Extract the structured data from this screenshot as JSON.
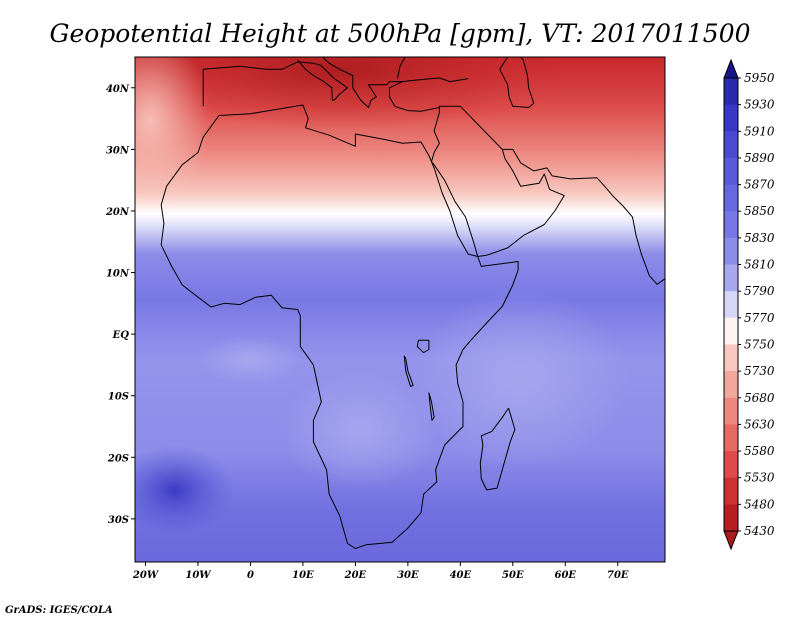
{
  "title": "Geopotential Height at 500hPa [gpm], VT: 2017011500",
  "credit": "GrADS: IGES/COLA",
  "map": {
    "lon_range": [
      -22,
      79
    ],
    "lat_range": [
      -37,
      45
    ],
    "lon_ticks": [
      {
        "value": -20,
        "label": "20W"
      },
      {
        "value": -10,
        "label": "10W"
      },
      {
        "value": 0,
        "label": "0"
      },
      {
        "value": 10,
        "label": "10E"
      },
      {
        "value": 20,
        "label": "20E"
      },
      {
        "value": 30,
        "label": "30E"
      },
      {
        "value": 40,
        "label": "40E"
      },
      {
        "value": 50,
        "label": "50E"
      },
      {
        "value": 60,
        "label": "60E"
      },
      {
        "value": 70,
        "label": "70E"
      }
    ],
    "lat_ticks": [
      {
        "value": 40,
        "label": "40N"
      },
      {
        "value": 30,
        "label": "30N"
      },
      {
        "value": 20,
        "label": "20N"
      },
      {
        "value": 10,
        "label": "10N"
      },
      {
        "value": 0,
        "label": "EQ"
      },
      {
        "value": -10,
        "label": "10S"
      },
      {
        "value": -20,
        "label": "20S"
      },
      {
        "value": -30,
        "label": "30S"
      }
    ]
  },
  "colorbar": {
    "levels_top_to_bottom": [
      "5950",
      "5930",
      "5910",
      "5890",
      "5870",
      "5850",
      "5830",
      "5810",
      "5790",
      "5770",
      "5750",
      "5730",
      "5680",
      "5630",
      "5580",
      "5530",
      "5480",
      "5430"
    ],
    "colors_top_to_bottom": [
      "#1a1a8f",
      "#2a2aae",
      "#3838c4",
      "#4a4ad0",
      "#5a5ad8",
      "#6868de",
      "#7878e4",
      "#8c8ce9",
      "#a8a8ef",
      "#d6d6f7",
      "#fff4f0",
      "#f8c8c0",
      "#f2a69c",
      "#ec8880",
      "#e56a64",
      "#dd4c4a",
      "#cc3232",
      "#b51f22"
    ],
    "top_arrow_color": "#16168a",
    "bottom_arrow_color": "#a81b1e"
  }
}
